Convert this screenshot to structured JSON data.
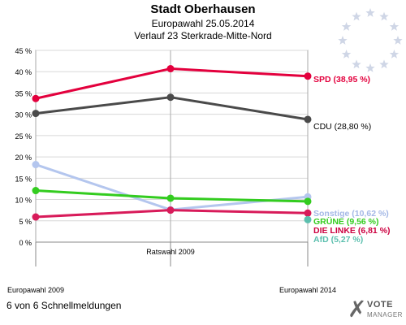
{
  "header": {
    "title": "Stadt Oberhausen",
    "subtitle": "Europawahl 25.05.2014",
    "subtitle2": "Verlauf 23 Sterkrade-Mitte-Nord"
  },
  "footer": {
    "text": "6 von 6 Schnellmeldungen"
  },
  "logo": {
    "mark": "✗",
    "line1": "VOTE",
    "line2": "MANAGER"
  },
  "chart_data": {
    "type": "line",
    "title": "Stadt Oberhausen",
    "x": [
      "Europawahl 2009",
      "Ratswahl 2009",
      "Europawahl 2014"
    ],
    "ylim": [
      0,
      45
    ],
    "yticks": [
      0,
      5,
      10,
      15,
      20,
      25,
      30,
      35,
      40,
      45
    ],
    "ytick_labels": [
      "0 %",
      "5 %",
      "10 %",
      "15 %",
      "20 %",
      "25 %",
      "30 %",
      "35 %",
      "40 %",
      "45 %"
    ],
    "grid": true,
    "series": [
      {
        "name": "SPD",
        "label": "SPD (38,95 %)",
        "values": [
          33.7,
          40.7,
          38.95
        ],
        "color": "#e3003d",
        "label_color": "#e3003d"
      },
      {
        "name": "CDU",
        "label": "CDU (28,80 %)",
        "values": [
          30.2,
          34.0,
          28.8
        ],
        "color": "#4a4a4a",
        "label_color": "#000000"
      },
      {
        "name": "Sonstige",
        "label": "Sonstige (10,62 %)",
        "values": [
          18.2,
          7.6,
          10.62
        ],
        "color": "#b4c6ee",
        "label_color": "#a4b8e6"
      },
      {
        "name": "GRÜNE",
        "label": "GRÜNE (9,56 %)",
        "values": [
          12.1,
          10.3,
          9.56
        ],
        "color": "#33cc1f",
        "label_color": "#33cc1f"
      },
      {
        "name": "DIE LINKE",
        "label": "DIE LINKE (6,81 %)",
        "values": [
          5.9,
          7.5,
          6.81
        ],
        "color": "#d81b5a",
        "label_color": "#cc0040"
      },
      {
        "name": "AfD",
        "label": "AfD (5,27 %)",
        "values": [
          null,
          null,
          5.27
        ],
        "color": "#5bbfae",
        "label_color": "#5bbfae"
      }
    ]
  }
}
